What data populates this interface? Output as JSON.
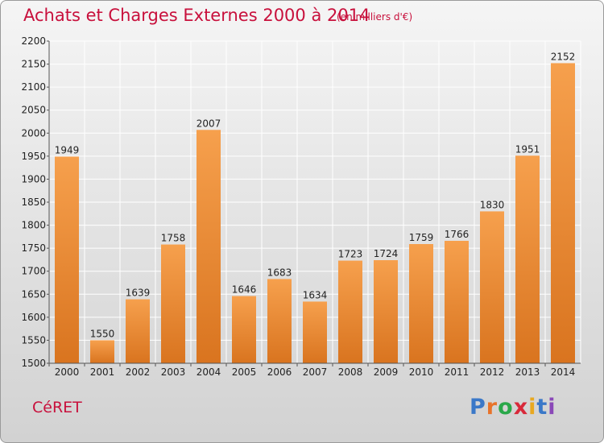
{
  "header": {
    "title": "Achats et Charges Externes 2000 à 2014",
    "unit": "(en milliers d'€)"
  },
  "footer": {
    "commune": "CéRET",
    "brand": "Proxiti",
    "brand_letter_colors": [
      "#3a78c8",
      "#e8732a",
      "#2aa84a",
      "#d8293a",
      "#e8a820",
      "#3a78c8",
      "#8a48b8"
    ]
  },
  "colors": {
    "title": "#c8103c",
    "bar_light": "#f6a04d",
    "bar_dark": "#d9741f",
    "grid": "#ffffff",
    "axis": "#555555"
  },
  "chart_data": {
    "type": "bar",
    "title": "Achats et Charges Externes 2000 à 2014",
    "xlabel": "",
    "ylabel": "",
    "categories": [
      "2000",
      "2001",
      "2002",
      "2003",
      "2004",
      "2005",
      "2006",
      "2007",
      "2008",
      "2009",
      "2010",
      "2011",
      "2012",
      "2013",
      "2014"
    ],
    "values": [
      1949,
      1550,
      1639,
      1758,
      2007,
      1646,
      1683,
      1634,
      1723,
      1724,
      1759,
      1766,
      1830,
      1951,
      2152
    ],
    "ylim": [
      1500,
      2200
    ],
    "yticks": [
      1500,
      1550,
      1600,
      1650,
      1700,
      1750,
      1800,
      1850,
      1900,
      1950,
      2000,
      2050,
      2100,
      2150,
      2200
    ],
    "grid": true
  }
}
